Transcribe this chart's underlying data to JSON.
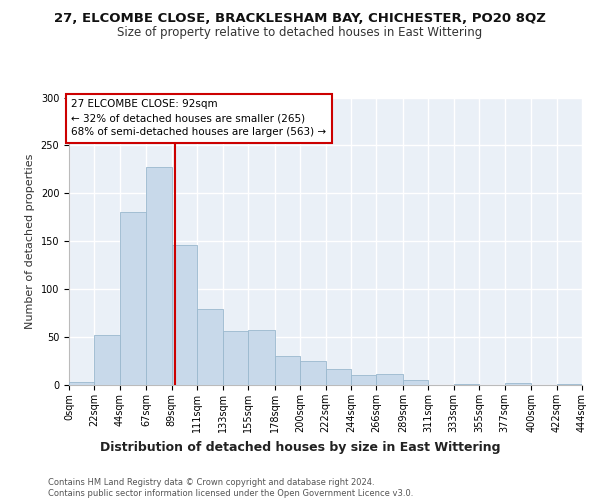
{
  "title1": "27, ELCOMBE CLOSE, BRACKLESHAM BAY, CHICHESTER, PO20 8QZ",
  "title2": "Size of property relative to detached houses in East Wittering",
  "xlabel": "Distribution of detached houses by size in East Wittering",
  "ylabel": "Number of detached properties",
  "property_size": 92,
  "annotation_line1": "27 ELCOMBE CLOSE: 92sqm",
  "annotation_line2": "← 32% of detached houses are smaller (265)",
  "annotation_line3": "68% of semi-detached houses are larger (563) →",
  "bar_color": "#c8d9ea",
  "bar_edge_color": "#9ab8ce",
  "vline_color": "#cc0000",
  "background_color": "#eaf0f7",
  "grid_color": "#ffffff",
  "bin_edges": [
    0,
    22,
    44,
    67,
    89,
    111,
    133,
    155,
    178,
    200,
    222,
    244,
    266,
    289,
    311,
    333,
    355,
    377,
    400,
    422,
    444
  ],
  "bin_counts": [
    3,
    52,
    181,
    228,
    146,
    79,
    56,
    57,
    30,
    25,
    17,
    10,
    11,
    5,
    0,
    1,
    0,
    2,
    0,
    1
  ],
  "ylim": [
    0,
    300
  ],
  "yticks": [
    0,
    50,
    100,
    150,
    200,
    250,
    300
  ],
  "tick_labels": [
    "0sqm",
    "22sqm",
    "44sqm",
    "67sqm",
    "89sqm",
    "111sqm",
    "133sqm",
    "155sqm",
    "178sqm",
    "200sqm",
    "222sqm",
    "244sqm",
    "266sqm",
    "289sqm",
    "311sqm",
    "333sqm",
    "355sqm",
    "377sqm",
    "400sqm",
    "422sqm",
    "444sqm"
  ],
  "footnote": "Contains HM Land Registry data © Crown copyright and database right 2024.\nContains public sector information licensed under the Open Government Licence v3.0.",
  "title1_fontsize": 9.5,
  "title2_fontsize": 8.5,
  "xlabel_fontsize": 9,
  "ylabel_fontsize": 8,
  "tick_fontsize": 7,
  "footnote_fontsize": 6,
  "fig_bg": "#ffffff"
}
